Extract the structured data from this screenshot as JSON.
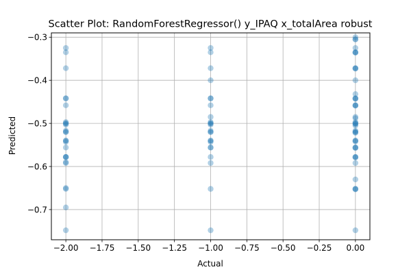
{
  "chart_data": {
    "type": "scatter",
    "title": "Scatter Plot: RandomForestRegressor() y_IPAQ x_totalArea robust",
    "xlabel": "Actual",
    "ylabel": "Predicted",
    "xlim": [
      -2.1,
      0.1
    ],
    "ylim": [
      -0.77,
      -0.29
    ],
    "xticks": [
      -2.0,
      -1.75,
      -1.5,
      -1.25,
      -1.0,
      -0.75,
      -0.5,
      -0.25,
      0.0
    ],
    "xtick_labels": [
      "−2.00",
      "−1.75",
      "−1.50",
      "−1.25",
      "−1.00",
      "−0.75",
      "−0.50",
      "−0.25",
      "0.00"
    ],
    "yticks": [
      -0.7,
      -0.6,
      -0.5,
      -0.4,
      -0.3
    ],
    "ytick_labels": [
      "−0.7",
      "−0.6",
      "−0.5",
      "−0.4",
      "−0.3"
    ],
    "grid": true,
    "marker_color": "#1f77b4",
    "series": [
      {
        "x": [
          -2.0,
          -2.0,
          -2.0,
          -2.0,
          -2.0,
          -2.0,
          -2.0,
          -2.0,
          -2.0,
          -2.0,
          -2.0,
          -2.0,
          -2.0,
          -2.0,
          -2.0,
          -2.0,
          -2.0,
          -2.0,
          -2.0,
          -2.0,
          -2.0,
          -2.0,
          -2.0,
          -2.0,
          -2.0,
          -2.0,
          -1.0,
          -1.0,
          -1.0,
          -1.0,
          -1.0,
          -1.0,
          -1.0,
          -1.0,
          -1.0,
          -1.0,
          -1.0,
          -1.0,
          -1.0,
          -1.0,
          -1.0,
          -1.0,
          -1.0,
          -1.0,
          -1.0,
          -1.0,
          -1.0,
          -1.0,
          -1.0,
          -1.0,
          0.0,
          0.0,
          0.0,
          0.0,
          0.0,
          0.0,
          0.0,
          0.0,
          0.0,
          0.0,
          0.0,
          0.0,
          0.0,
          0.0,
          0.0,
          0.0,
          0.0,
          0.0,
          0.0,
          0.0,
          0.0,
          0.0,
          0.0,
          0.0,
          0.0,
          0.0,
          0.0,
          0.0,
          0.0,
          0.0,
          0.0,
          0.0,
          0.0,
          0.0,
          0.0,
          0.0,
          0.0,
          0.0,
          0.0,
          0.0,
          0.0,
          0.0,
          0.0,
          0.0
        ],
        "y": [
          -0.325,
          -0.335,
          -0.372,
          -0.442,
          -0.442,
          -0.458,
          -0.497,
          -0.5,
          -0.503,
          -0.517,
          -0.52,
          -0.54,
          -0.543,
          -0.556,
          -0.578,
          -0.578,
          -0.59,
          -0.592,
          -0.65,
          -0.652,
          -0.695,
          -0.748,
          -0.5,
          -0.52,
          -0.54,
          -0.578,
          -0.325,
          -0.335,
          -0.372,
          -0.4,
          -0.442,
          -0.442,
          -0.458,
          -0.485,
          -0.497,
          -0.5,
          -0.503,
          -0.517,
          -0.52,
          -0.54,
          -0.543,
          -0.556,
          -0.578,
          -0.592,
          -0.652,
          -0.748,
          -0.5,
          -0.52,
          -0.54,
          -0.556,
          -0.3,
          -0.305,
          -0.325,
          -0.335,
          -0.336,
          -0.372,
          -0.373,
          -0.4,
          -0.432,
          -0.442,
          -0.443,
          -0.458,
          -0.459,
          -0.485,
          -0.497,
          -0.5,
          -0.502,
          -0.505,
          -0.517,
          -0.52,
          -0.522,
          -0.54,
          -0.542,
          -0.556,
          -0.557,
          -0.578,
          -0.579,
          -0.592,
          -0.63,
          -0.652,
          -0.653,
          -0.748,
          -0.305,
          -0.335,
          -0.372,
          -0.442,
          -0.458,
          -0.5,
          -0.52,
          -0.54,
          -0.556,
          -0.578,
          -0.652,
          -0.488
        ]
      }
    ]
  }
}
